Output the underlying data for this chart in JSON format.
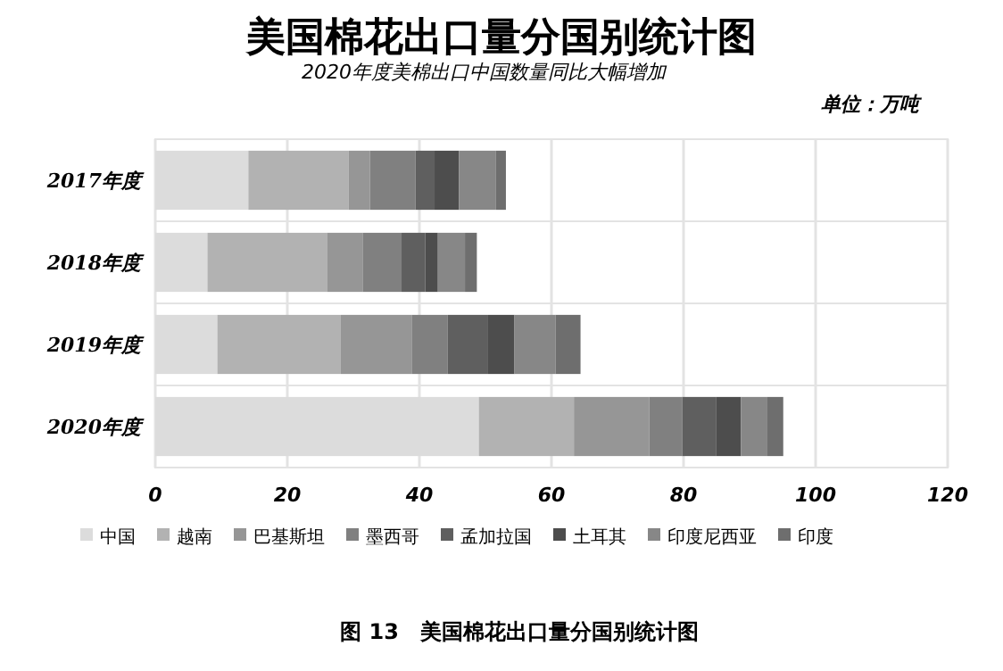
{
  "chart_data": {
    "type": "bar",
    "orientation": "horizontal",
    "stacked": true,
    "title": "美国棉花出口量分国别统计图",
    "subtitle": "2020年度美棉出口中国数量同比大幅增加",
    "annotations": [
      "单位：万吨",
      "图 13　美国棉花出口量分国别统计图"
    ],
    "categories": [
      "2017年度",
      "2018年度",
      "2019年度",
      "2020年度"
    ],
    "series": [
      {
        "name": "中国",
        "color": "#dcdcdc",
        "values": [
          14.1,
          7.9,
          9.4,
          49.0
        ]
      },
      {
        "name": "越南",
        "color": "#b2b2b2",
        "values": [
          15.2,
          18.1,
          18.7,
          14.4
        ]
      },
      {
        "name": "巴基斯坦",
        "color": "#969696",
        "values": [
          3.2,
          5.4,
          10.8,
          11.4
        ]
      },
      {
        "name": "墨西哥",
        "color": "#808080",
        "values": [
          6.9,
          5.9,
          5.4,
          5.0
        ]
      },
      {
        "name": "孟加拉国",
        "color": "#5f5f5f",
        "values": [
          2.9,
          3.6,
          6.1,
          5.1
        ]
      },
      {
        "name": "土耳其",
        "color": "#4d4d4d",
        "values": [
          3.7,
          1.9,
          4.0,
          3.8
        ]
      },
      {
        "name": "印度尼西亚",
        "color": "#878787",
        "values": [
          5.6,
          4.1,
          6.2,
          3.9
        ]
      },
      {
        "name": "印度",
        "color": "#6e6e6e",
        "values": [
          1.5,
          1.8,
          3.8,
          2.5
        ]
      }
    ],
    "xlim": [
      0,
      120
    ],
    "xticks": [
      0,
      20,
      40,
      60,
      80,
      100,
      120
    ],
    "grid": "x",
    "legend": "bottom"
  }
}
